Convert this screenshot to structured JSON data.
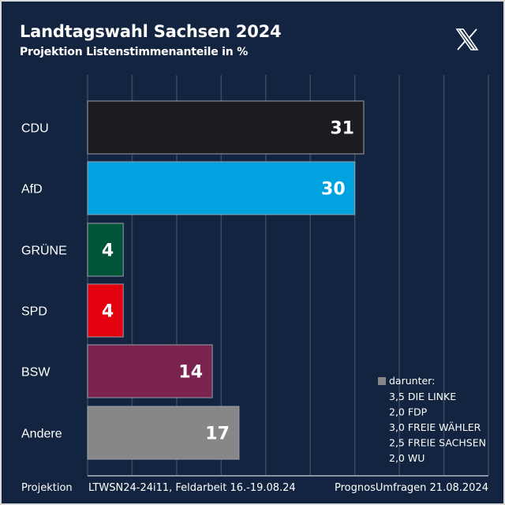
{
  "header": {
    "title": "Landtagswahl Sachsen 2024",
    "subtitle": "Projektion Listenstimmenanteile in %",
    "logo": "x-logo-icon"
  },
  "colors": {
    "background": "#12243f",
    "gridline": "#3a4a62",
    "axis": "#8a93a0",
    "text": "#ffffff"
  },
  "chart_data": {
    "type": "bar",
    "orientation": "horizontal",
    "title": "Landtagswahl Sachsen 2024",
    "subtitle": "Projektion Listenstimmenanteile in %",
    "xlabel": "",
    "ylabel": "",
    "xlim": [
      0,
      45
    ],
    "grid": true,
    "grid_step": 5,
    "categories": [
      "CDU",
      "AfD",
      "GRÜNE",
      "SPD",
      "BSW",
      "Andere"
    ],
    "values": [
      31,
      30,
      4,
      4,
      14,
      17
    ],
    "value_labels": [
      "31",
      "30",
      "4",
      "4",
      "14",
      "17"
    ],
    "bar_colors": [
      "#1e1c20",
      "#00a2e0",
      "#005538",
      "#e3000f",
      "#7a234f",
      "#878787"
    ],
    "annotation": {
      "marker_color": "#878787",
      "heading": "darunter:",
      "lines": [
        "3,5 DIE LINKE",
        "2,0 FDP",
        "3,0 FREIE WÄHLER",
        "2,5 FREIE SACHSEN",
        "2,0 WU"
      ]
    }
  },
  "footer": {
    "label": "Projektion",
    "details": "LTWSN24-24i11, Feldarbeit 16.-19.08.24",
    "source": "PrognosUmfragen 21.08.2024"
  }
}
